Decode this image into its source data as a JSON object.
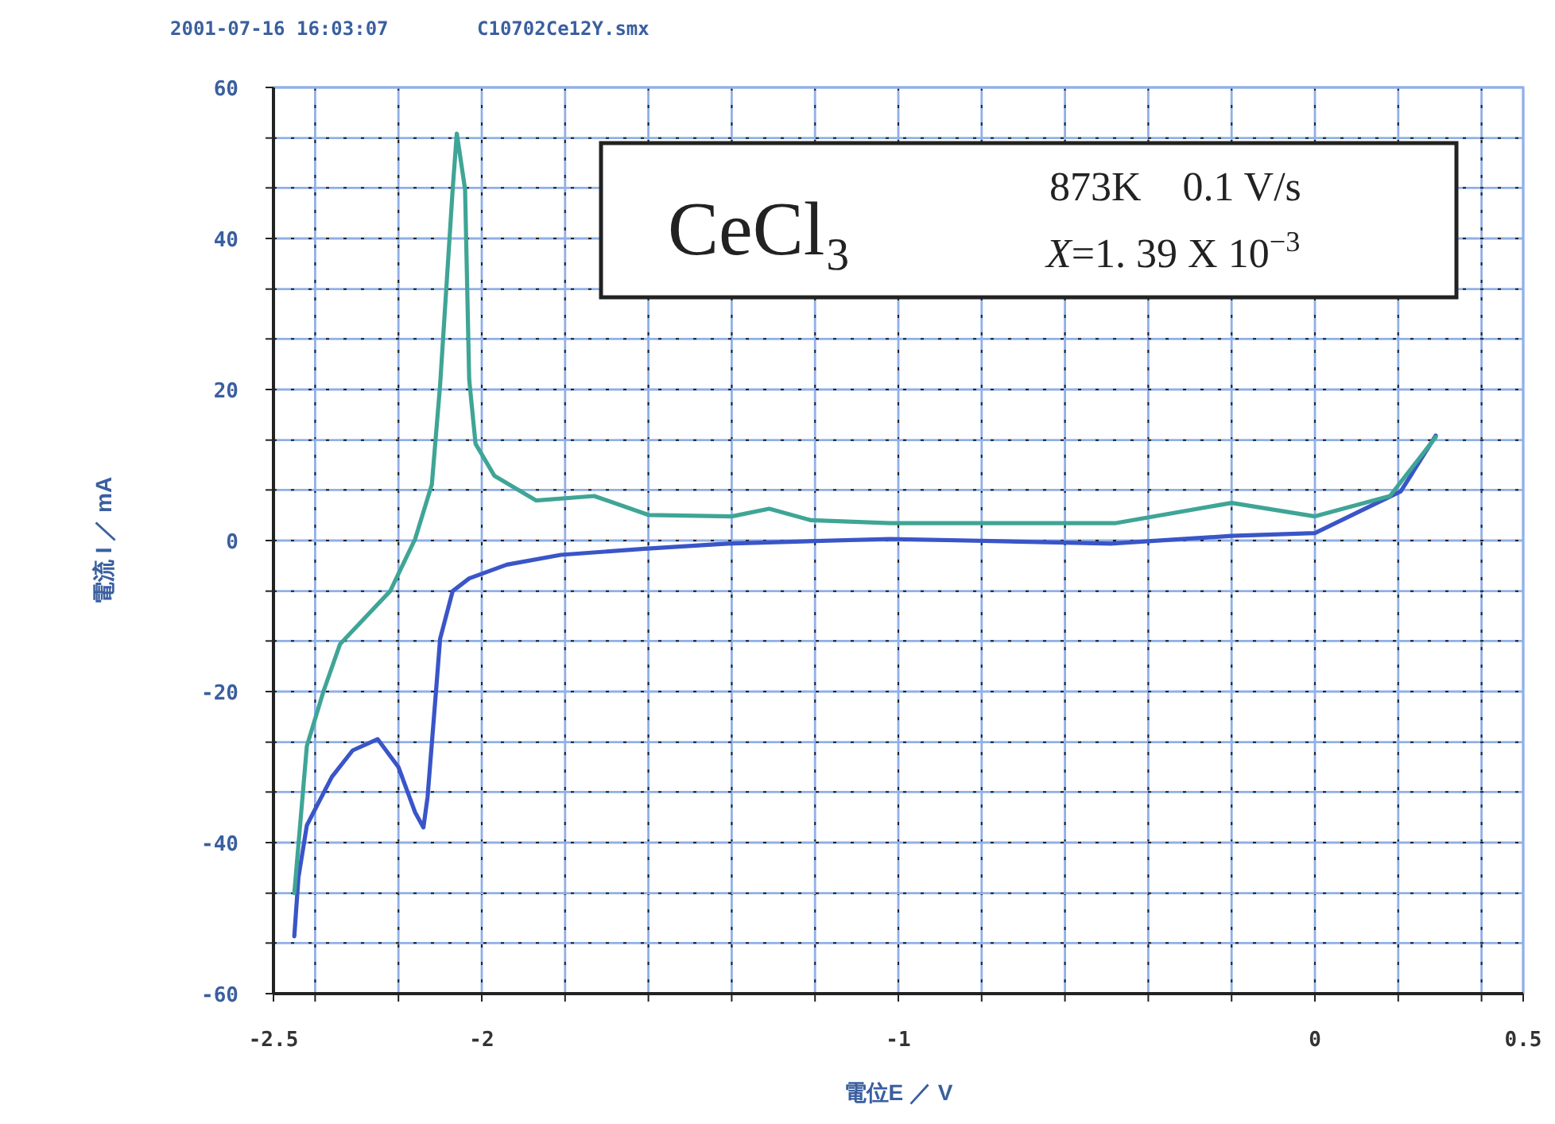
{
  "chart_data": {
    "type": "line",
    "xlabel": "電位E ／ V",
    "ylabel": "電流 I ／ mA",
    "annotations": [
      "2001-07-16 16:03:07",
      "C10702Ce12Y.smx",
      "CeCl₃",
      "873K　0.1 V/s",
      "X=1. 39 X 10$^{−3}$"
    ],
    "xlim": [
      -2.5,
      0.5
    ],
    "xticks": [
      -2.5,
      {
        "value": -2.4,
        "label": null
      },
      {
        "value": -2.2,
        "label": null
      },
      -2,
      {
        "value": -1.8,
        "label": null
      },
      {
        "value": -1.6,
        "label": null
      },
      {
        "value": -1.4,
        "label": null
      },
      {
        "value": -1.2,
        "label": null
      },
      -1,
      {
        "value": -0.8,
        "label": null
      },
      {
        "value": -0.6,
        "label": null
      },
      {
        "value": -0.4,
        "label": null
      },
      {
        "value": -0.2,
        "label": null
      },
      0,
      {
        "value": 0.2,
        "label": null
      },
      {
        "value": 0.4,
        "label": null
      },
      0.5
    ],
    "ylim": [
      -60,
      60
    ],
    "yticks": [
      -60,
      {
        "value": -53.3,
        "label": null
      },
      {
        "value": -46.7,
        "label": null
      },
      -40,
      {
        "value": -33.3,
        "label": null
      },
      {
        "value": -26.7,
        "label": null
      },
      -20,
      {
        "value": -13.3,
        "label": null
      },
      {
        "value": -6.7,
        "label": null
      },
      0,
      {
        "value": 6.7,
        "label": null
      },
      {
        "value": 13.3,
        "label": null
      },
      20,
      {
        "value": 26.7,
        "label": null
      },
      {
        "value": 33.3,
        "label": null
      },
      40,
      {
        "value": 46.7,
        "label": null
      },
      {
        "value": 53.3,
        "label": null
      },
      60
    ],
    "grid": true,
    "marker": "none",
    "line_style": "solid",
    "series": [
      {
        "color": "#3a55c8",
        "x": [
          0.29,
          0.206,
          0.0,
          -0.2,
          -0.49,
          -1.02,
          -1.41,
          -1.61,
          -1.81,
          -1.94,
          -2.03,
          -2.07,
          -2.1,
          -2.11,
          -2.13,
          -2.14,
          -2.16,
          -2.2,
          -2.25,
          -2.31,
          -2.36,
          -2.42,
          -2.44,
          -2.45
        ],
        "values": [
          13.9,
          6.5,
          1.0,
          0.6,
          -0.4,
          0.2,
          -0.4,
          -1.1,
          -1.9,
          -3.2,
          -5,
          -6.7,
          -13,
          -20,
          -34,
          -38,
          -36,
          -30,
          -26.3,
          -27.8,
          -31.3,
          -37.7,
          -44.6,
          -52.4
        ]
      },
      {
        "color": "#3fa596",
        "x": [
          -2.45,
          -2.42,
          -2.38,
          -2.34,
          -2.22,
          -2.16,
          -2.12,
          -2.1,
          -2.07,
          -2.06,
          -2.04,
          -2.03,
          -2.015,
          -1.97,
          -1.87,
          -1.73,
          -1.6,
          -1.4,
          -1.31,
          -1.21,
          -1.02,
          -0.76,
          -0.48,
          -0.2,
          0.0,
          0.18,
          0.29
        ],
        "values": [
          -46.7,
          -27.2,
          -20,
          -13.7,
          -6.7,
          0.2,
          7.4,
          20.6,
          46.5,
          53.9,
          46.5,
          21.3,
          12.8,
          8.6,
          5.3,
          5.9,
          3.4,
          3.2,
          4.2,
          2.7,
          2.3,
          2.3,
          2.3,
          5.0,
          3.2,
          5.9,
          13.7
        ]
      }
    ]
  }
}
